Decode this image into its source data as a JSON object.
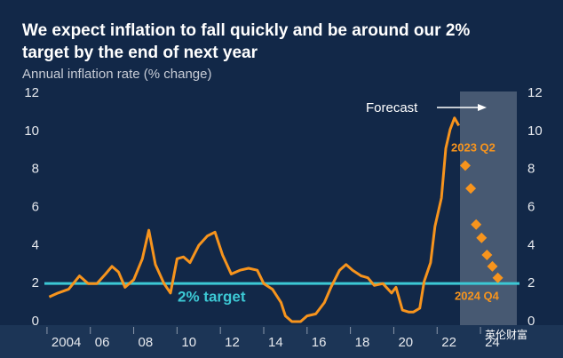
{
  "chart_data": {
    "type": "line",
    "title": "We expect inflation to fall quickly and be around our 2%",
    "title_line2": "target by the end of next year",
    "subtitle": "Annual inflation rate (% change)",
    "xlim": [
      2003.88,
      2025.8
    ],
    "xticks": [
      {
        "value": 2004,
        "label": "2004"
      },
      {
        "value": 2006,
        "label": "06"
      },
      {
        "value": 2008,
        "label": "08"
      },
      {
        "value": 2010,
        "label": "10"
      },
      {
        "value": 2012,
        "label": "12"
      },
      {
        "value": 2014,
        "label": "14"
      },
      {
        "value": 2016,
        "label": "16"
      },
      {
        "value": 2018,
        "label": "18"
      },
      {
        "value": 2020,
        "label": "20"
      },
      {
        "value": 2022,
        "label": "22"
      },
      {
        "value": 2024,
        "label": "24"
      }
    ],
    "ylim": [
      0,
      12
    ],
    "yticks": [
      0,
      2,
      4,
      6,
      8,
      10,
      12
    ],
    "y2lim": [
      0,
      12
    ],
    "y2ticks": [
      0,
      2,
      4,
      6,
      8,
      10,
      12
    ],
    "grid": false,
    "series": [
      {
        "color": "#f7941d",
        "marker": "line",
        "x": [
          2004.1,
          2004.5,
          2005.0,
          2005.5,
          2005.9,
          2006.3,
          2006.7,
          2007.0,
          2007.3,
          2007.6,
          2008.0,
          2008.4,
          2008.7,
          2009.0,
          2009.4,
          2009.7,
          2010.0,
          2010.3,
          2010.6,
          2011.0,
          2011.4,
          2011.75,
          2012.1,
          2012.5,
          2012.9,
          2013.3,
          2013.7,
          2014.0,
          2014.4,
          2014.8,
          2015.0,
          2015.3,
          2015.7,
          2016.0,
          2016.4,
          2016.8,
          2017.1,
          2017.5,
          2017.8,
          2018.1,
          2018.5,
          2018.8,
          2019.1,
          2019.5,
          2019.9,
          2020.1,
          2020.4,
          2020.7,
          2020.9,
          2021.2,
          2021.4,
          2021.7,
          2021.9,
          2022.2,
          2022.4,
          2022.6,
          2022.8,
          2023.0
        ],
        "values": [
          1.3,
          1.5,
          1.7,
          2.4,
          2.0,
          2.0,
          2.5,
          2.9,
          2.6,
          1.8,
          2.2,
          3.3,
          4.8,
          3.0,
          2.0,
          1.5,
          3.3,
          3.4,
          3.1,
          4.0,
          4.5,
          4.7,
          3.5,
          2.5,
          2.7,
          2.8,
          2.7,
          2.0,
          1.7,
          1.0,
          0.3,
          0.0,
          0.0,
          0.3,
          0.4,
          1.0,
          1.8,
          2.7,
          3.0,
          2.7,
          2.4,
          2.3,
          1.9,
          2.0,
          1.5,
          1.8,
          0.6,
          0.5,
          0.5,
          0.7,
          2.1,
          3.1,
          5.0,
          6.5,
          9.1,
          10.1,
          10.7,
          10.3
        ]
      },
      {
        "color": "#f7941d",
        "marker": "diamond",
        "x": [
          2023.3,
          2023.55,
          2023.8,
          2024.05,
          2024.3,
          2024.55,
          2024.8
        ],
        "values": [
          8.2,
          7.0,
          5.1,
          4.4,
          3.5,
          2.9,
          2.3
        ]
      }
    ],
    "reference_line": {
      "value": 2,
      "label": "2% target",
      "color": "#3cc8d4"
    },
    "annotations": [
      "Forecast",
      "2023 Q2",
      "2024 Q4"
    ],
    "watermark": "英伦财富"
  }
}
